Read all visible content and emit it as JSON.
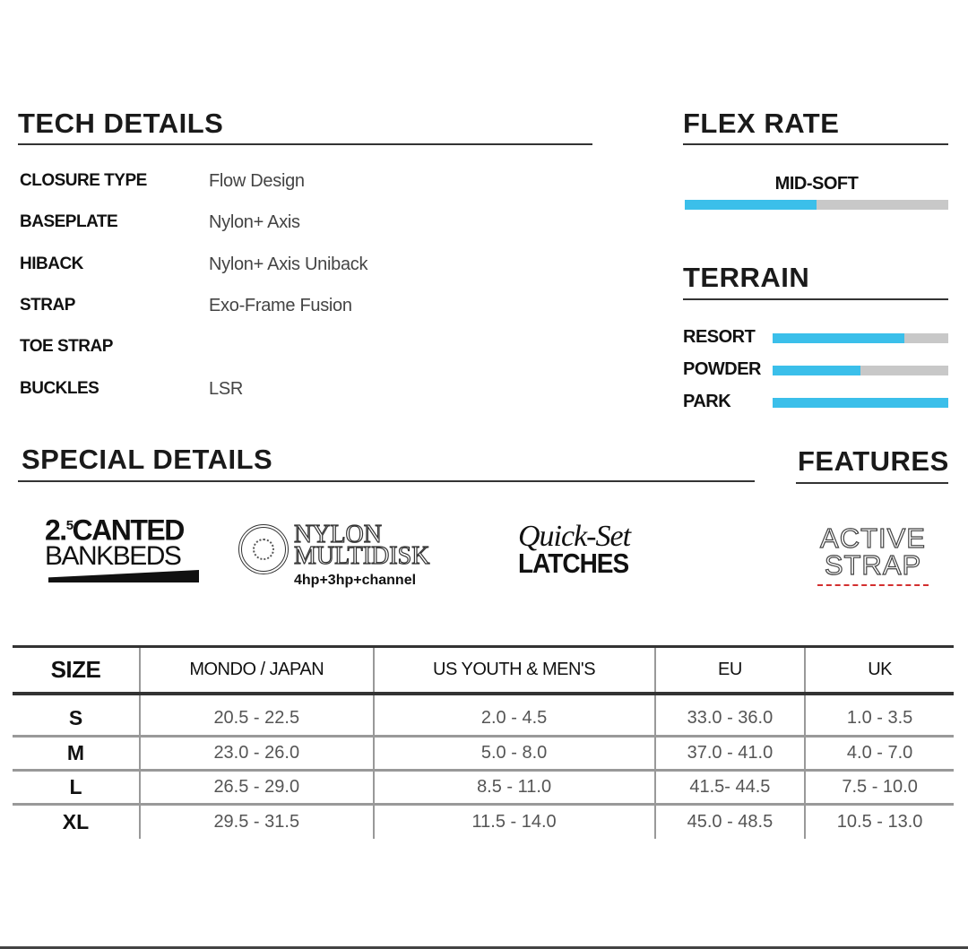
{
  "tech_details": {
    "title": "TECH DETAILS",
    "rows": [
      {
        "label": "CLOSURE TYPE",
        "value": "Flow Design"
      },
      {
        "label": "BASEPLATE",
        "value": "Nylon+ Axis"
      },
      {
        "label": "HIBACK",
        "value": "Nylon+ Axis Uniback"
      },
      {
        "label": "STRAP",
        "value": "Exo-Frame Fusion"
      },
      {
        "label": "TOE STRAP",
        "value": ""
      },
      {
        "label": "BUCKLES",
        "value": "LSR"
      }
    ]
  },
  "flex_rate": {
    "title": "FLEX RATE",
    "label": "MID-SOFT",
    "level": 0.5
  },
  "terrain": {
    "title": "TERRAIN",
    "items": [
      {
        "label": "RESORT",
        "level": 0.75
      },
      {
        "label": "POWDER",
        "level": 0.5
      },
      {
        "label": "PARK",
        "level": 1.0
      }
    ]
  },
  "special_details": {
    "title": "SPECIAL DETAILS",
    "logos": [
      {
        "line1": "2.5 CANTED",
        "sup": "5",
        "lead": "2.",
        "word": "CANTED",
        "line2": "BANKBEDS"
      },
      {
        "line1": "NYLON",
        "line2": "MULTIDISK",
        "line3": "4hp+3hp+channel"
      },
      {
        "line1": "Quick-Set",
        "line2": "LATCHES"
      }
    ]
  },
  "features": {
    "title": "FEATURES",
    "logo": {
      "line1": "ACTIVE",
      "line2": "STRAP"
    }
  },
  "size_table": {
    "headers": [
      "SIZE",
      "MONDO / JAPAN",
      "US YOUTH & MEN'S",
      "EU",
      "UK"
    ],
    "rows": [
      [
        "S",
        "20.5 - 22.5",
        "2.0 - 4.5",
        "33.0 - 36.0",
        "1.0 - 3.5"
      ],
      [
        "M",
        "23.0 - 26.0",
        "5.0 - 8.0",
        "37.0 - 41.0",
        "4.0 - 7.0"
      ],
      [
        "L",
        "26.5 - 29.0",
        "8.5 - 11.0",
        "41.5- 44.5",
        "7.5 - 10.0"
      ],
      [
        "XL",
        "29.5 - 31.5",
        "11.5 - 14.0",
        "45.0 - 48.5",
        "10.5 - 13.0"
      ]
    ]
  },
  "colors": {
    "bar_fill": "#3bbfea",
    "bar_track": "#c8c8c8",
    "feature_arrow": "#d32f2f"
  }
}
